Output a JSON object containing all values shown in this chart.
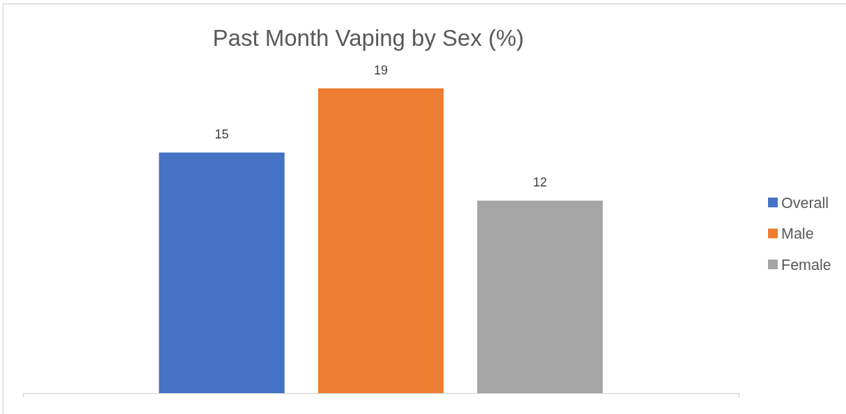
{
  "chart_data": {
    "type": "bar",
    "title": "Past Month Vaping by Sex (%)",
    "categories": [
      null
    ],
    "series": [
      {
        "name": "Overall",
        "color": "#4472c4",
        "values": [
          15
        ]
      },
      {
        "name": "Male",
        "color": "#ed7d31",
        "values": [
          19
        ]
      },
      {
        "name": "Female",
        "color": "#a5a5a5",
        "values": [
          12
        ]
      }
    ],
    "data_labels": true,
    "legend": "right"
  }
}
